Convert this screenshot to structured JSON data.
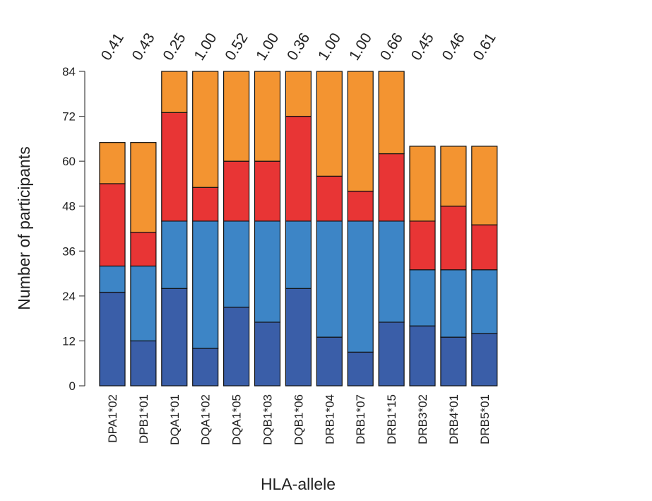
{
  "chart_data": {
    "type": "bar",
    "stacked": true,
    "xlabel": "HLA-allele",
    "ylabel": "Number of participants",
    "ylim": [
      0,
      84
    ],
    "yticks": [
      0,
      12,
      24,
      36,
      48,
      60,
      72,
      84
    ],
    "grid": false,
    "categories": [
      "DPA1*02",
      "DPB1*01",
      "DQA1*01",
      "DQA1*02",
      "DQA1*05",
      "DQB1*03",
      "DQB1*06",
      "DRB1*04",
      "DRB1*07",
      "DRB1*15",
      "DRB3*02",
      "DRB4*01",
      "DRB5*01"
    ],
    "top_labels": [
      "0.41",
      "0.43",
      "0.25",
      "1.00",
      "0.52",
      "1.00",
      "0.36",
      "1.00",
      "1.00",
      "0.66",
      "0.45",
      "0.46",
      "0.61"
    ],
    "series": [
      {
        "color": "#3a5ea8",
        "values": [
          25,
          12,
          26,
          10,
          21,
          17,
          26,
          13,
          9,
          17,
          16,
          13,
          14
        ]
      },
      {
        "color": "#3d85c6",
        "values": [
          7,
          20,
          18,
          34,
          23,
          27,
          18,
          31,
          35,
          27,
          15,
          18,
          17
        ]
      },
      {
        "color": "#e83535",
        "values": [
          22,
          9,
          29,
          9,
          16,
          16,
          28,
          12,
          8,
          18,
          13,
          17,
          12
        ]
      },
      {
        "color": "#f39431",
        "values": [
          11,
          24,
          11,
          31,
          24,
          24,
          12,
          28,
          32,
          22,
          20,
          16,
          21
        ]
      }
    ]
  }
}
